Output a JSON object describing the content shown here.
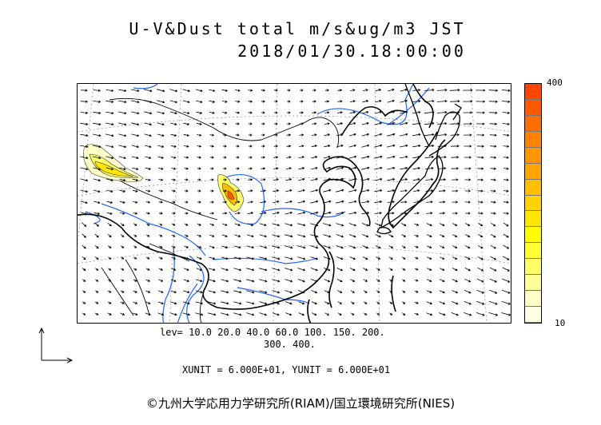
{
  "title_line1": "U-V&Dust total m/s&ug/m3 JST",
  "title_line2": "2018/01/30.18:00:00",
  "colorbar": {
    "max_label": "400",
    "min_label": "10",
    "colors": [
      "#ffffe6",
      "#ffffc8",
      "#ffff9a",
      "#ffff66",
      "#ffff33",
      "#ffff00",
      "#ffe600",
      "#ffd200",
      "#ffbe00",
      "#ffa500",
      "#ff9600",
      "#ff8200",
      "#ff6e00",
      "#ff5a00",
      "#ff4600"
    ]
  },
  "levels_line1": "lev= 10.0 20.0 40.0 60.0 100. 150. 200.",
  "levels_line2": "300. 400.",
  "unit_line": "XUNIT = 6.000E+01, YUNIT = 6.000E+01",
  "copyright": "©九州大学応用力学研究所(RIAM)/国立環境研究所(NIES)"
}
